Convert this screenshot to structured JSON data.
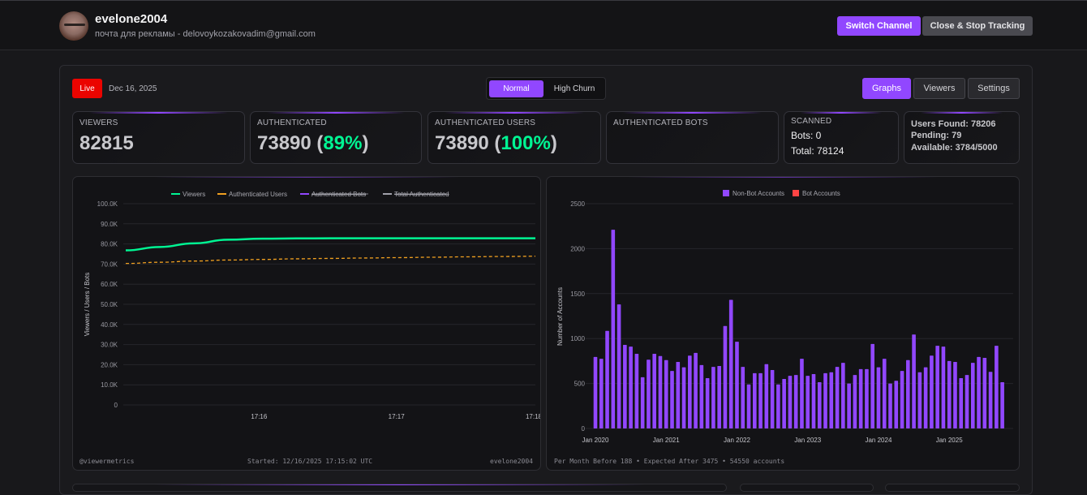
{
  "header": {
    "channel_name": "evelone2004",
    "channel_sub": "почта для рекламы - delovoykozakovadim@gmail.com",
    "switch_channel": "Switch Channel",
    "close_stop": "Close & Stop Tracking"
  },
  "toolbar": {
    "live_label": "Live",
    "date": "Dec 16, 2025",
    "modes": [
      "Normal",
      "High Churn"
    ],
    "active_mode": "Normal",
    "tabs": [
      "Graphs",
      "Viewers",
      "Settings"
    ],
    "active_tab": "Graphs"
  },
  "stats": {
    "viewers": {
      "label": "VIEWERS",
      "value": "82815"
    },
    "authenticated": {
      "label": "AUTHENTICATED",
      "value": "73890",
      "pct": "89%"
    },
    "authenticated_users": {
      "label": "AUTHENTICATED USERS",
      "value": "73890",
      "pct": "100%"
    },
    "authenticated_bots": {
      "label": "AUTHENTICATED BOTS"
    },
    "scanned": {
      "label": "SCANNED",
      "bots": "Bots: 0",
      "total": "Total: 78124"
    },
    "found": {
      "users_found": "Users Found: 78206",
      "pending": "Pending: 79",
      "available": "Available: 3784/5000"
    }
  },
  "colors": {
    "accent": "#9147ff",
    "live": "#eb0400",
    "green": "#00f593",
    "orange": "#f0a020",
    "bot_red": "#ff4444"
  },
  "chart_data": [
    {
      "type": "line",
      "title": "",
      "ylabel": "Viewers / Users / Bots",
      "xlabel": "",
      "ylim": [
        0,
        100000
      ],
      "y_ticks": [
        "0",
        "10.0K",
        "20.0K",
        "30.0K",
        "40.0K",
        "50.0K",
        "60.0K",
        "70.0K",
        "80.0K",
        "90.0K",
        "100.0K"
      ],
      "x_ticks": [
        "17:16",
        "17:17",
        "17:18"
      ],
      "legend": [
        {
          "name": "Viewers",
          "color": "#00f593",
          "hidden": false
        },
        {
          "name": "Authenticated Users",
          "color": "#f0a020",
          "hidden": false
        },
        {
          "name": "Authenticated Bots",
          "color": "#9147ff",
          "hidden": true
        },
        {
          "name": "Total Authenticated",
          "color": "#a1a1aa",
          "hidden": true
        }
      ],
      "x_minutes": [
        0.0,
        0.25,
        0.5,
        0.75,
        1.0,
        1.25,
        1.5,
        1.75,
        2.0,
        2.25,
        2.5,
        2.75,
        3.0
      ],
      "series": [
        {
          "name": "Viewers",
          "values": [
            76800,
            78500,
            80300,
            82100,
            82600,
            82750,
            82800,
            82810,
            82815,
            82815,
            82815,
            82815,
            82815
          ]
        },
        {
          "name": "Authenticated Users",
          "values": [
            70300,
            70900,
            71500,
            72000,
            72300,
            72600,
            72800,
            73000,
            73200,
            73400,
            73600,
            73750,
            73890
          ]
        }
      ],
      "footer": {
        "left": "@viewermetrics",
        "center": "Started: 12/16/2025 17:15:02 UTC",
        "right": "evelone2004"
      }
    },
    {
      "type": "bar",
      "title": "",
      "ylabel": "Number of Accounts",
      "xlabel": "",
      "ylim": [
        0,
        2500
      ],
      "y_ticks": [
        "0",
        "500",
        "1000",
        "1500",
        "2000",
        "2500"
      ],
      "x_ticks": [
        "Jan 2020",
        "Jan 2021",
        "Jan 2022",
        "Jan 2023",
        "Jan 2024",
        "Jan 2025"
      ],
      "legend": [
        {
          "name": "Non-Bot Accounts",
          "color": "#9147ff"
        },
        {
          "name": "Bot Accounts",
          "color": "#ff4444"
        }
      ],
      "series": [
        {
          "name": "Non-Bot Accounts",
          "values": [
            795,
            775,
            1085,
            2210,
            1380,
            930,
            910,
            830,
            570,
            765,
            830,
            805,
            760,
            640,
            740,
            680,
            810,
            840,
            705,
            560,
            685,
            695,
            1140,
            1430,
            965,
            685,
            490,
            615,
            615,
            715,
            650,
            490,
            550,
            585,
            595,
            775,
            585,
            605,
            515,
            615,
            625,
            685,
            730,
            500,
            595,
            660,
            660,
            940,
            680,
            775,
            500,
            530,
            640,
            760,
            1045,
            625,
            680,
            810,
            920,
            910,
            750,
            740,
            560,
            595,
            730,
            795,
            785,
            630,
            920,
            515
          ]
        },
        {
          "name": "Bot Accounts",
          "values": []
        }
      ],
      "footer": "Per Month Before 188 • Expected After 3475 • 54550 accounts"
    }
  ]
}
